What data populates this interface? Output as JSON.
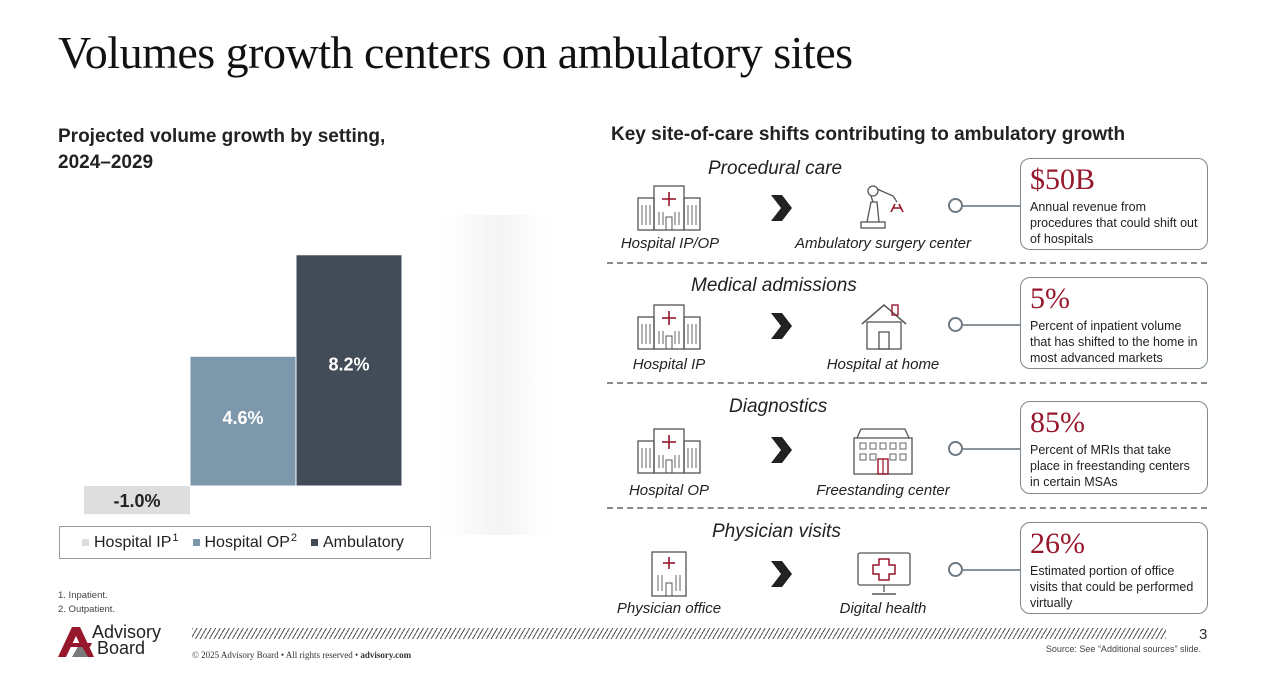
{
  "title": "Volumes growth centers on ambulatory sites",
  "left_subtitle_line1": "Projected volume growth by setting,",
  "left_subtitle_line2": "2024–2029",
  "right_subtitle": "Key site-of-care shifts contributing to ambulatory growth",
  "chart_data": {
    "type": "bar",
    "title": "Projected volume growth by setting, 2024–2029",
    "categories": [
      "Hospital IP",
      "Hospital OP",
      "Ambulatory"
    ],
    "values": [
      -1.0,
      4.6,
      8.2
    ],
    "value_labels": [
      "-1.0%",
      "4.6%",
      "8.2%"
    ],
    "colors": [
      "#dedede",
      "#7d97ab",
      "#424c58"
    ],
    "label_colors": [
      "#222222",
      "#ffffff",
      "#ffffff"
    ],
    "legend": [
      {
        "label": "Hospital IP",
        "sup": "1",
        "color": "#dedede"
      },
      {
        "label": "Hospital OP",
        "sup": "2",
        "color": "#7d97ab"
      },
      {
        "label": "Ambulatory",
        "sup": "",
        "color": "#424c58"
      }
    ],
    "legend_position": "bottom",
    "grid": false,
    "ylim": [
      -1.0,
      8.2
    ]
  },
  "footnotes": [
    "1.  Inpatient.",
    "2.  Outpatient."
  ],
  "shifts": [
    {
      "heading": "Procedural care",
      "from_label": "Hospital IP/OP",
      "from_icon": "hospital-icon",
      "to_label": "Ambulatory surgery center",
      "to_icon": "robotic-arm-icon",
      "stat": "$50B",
      "description": "Annual revenue from procedures that could shift out of hospitals"
    },
    {
      "heading": "Medical admissions",
      "from_label": "Hospital IP",
      "from_icon": "hospital-icon",
      "to_label": "Hospital at home",
      "to_icon": "house-icon",
      "stat": "5%",
      "description": "Percent of inpatient volume that has shifted to the home in most advanced markets"
    },
    {
      "heading": "Diagnostics",
      "from_label": "Hospital OP",
      "from_icon": "hospital-icon",
      "to_label": "Freestanding center",
      "to_icon": "freestanding-building-icon",
      "stat": "85%",
      "description": "Percent of MRIs that take place in freestanding centers in certain MSAs"
    },
    {
      "heading": "Physician visits",
      "from_label": "Physician office",
      "from_icon": "physician-office-icon",
      "to_label": "Digital health",
      "to_icon": "monitor-cross-icon",
      "stat": "26%",
      "description": "Estimated portion of office visits that could be performed virtually"
    }
  ],
  "colors": {
    "accent_red": "#97172c",
    "dark_gray": "#424c58",
    "steel_blue": "#7d97ab"
  },
  "footer": {
    "page_number": "3",
    "copyright": "© 2025 Advisory Board • All rights reserved • ",
    "website": "advisory.com",
    "source": "Source: See “Additional sources” slide.",
    "logo_line1": "Advisory",
    "logo_line2": "Board"
  }
}
